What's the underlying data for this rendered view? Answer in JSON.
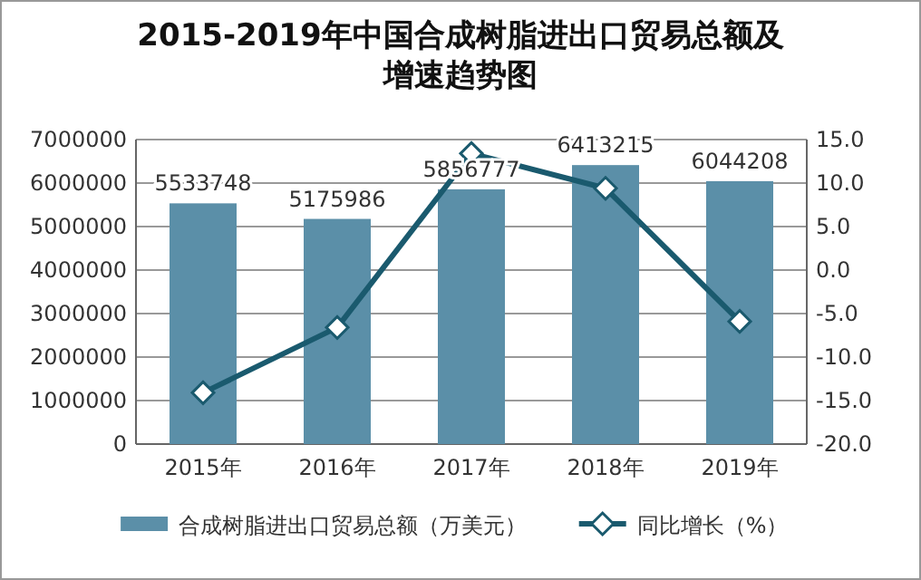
{
  "chart_data": {
    "type": "bar",
    "title": "2015-2019年中国合成树脂进出口贸易总额及增速趋势图",
    "categories": [
      "2015年",
      "2016年",
      "2017年",
      "2018年",
      "2019年"
    ],
    "series": [
      {
        "name": "合成树脂进出口贸易总额（万美元）",
        "color": "#5b8fa8",
        "values": [
          5533748,
          5175986,
          5856777,
          6413215,
          6044208
        ],
        "value_labels": [
          "5533748",
          "5175986",
          "5856777",
          "6413215",
          "6044208"
        ]
      },
      {
        "name": "同比增长（%）",
        "type": "line",
        "axis": "y2",
        "color": "#1a5a6e",
        "marker": "diamond",
        "values": [
          -14.1,
          -6.6,
          13.4,
          9.4,
          -5.9
        ]
      }
    ],
    "ylim": [
      0,
      7000000
    ],
    "yticks": [
      0,
      1000000,
      2000000,
      3000000,
      4000000,
      5000000,
      6000000,
      7000000
    ],
    "y2lim": [
      -20,
      15
    ],
    "y2ticks": [
      {
        "value": -20,
        "label": "-20.0"
      },
      {
        "value": -15,
        "label": "-15.0"
      },
      {
        "value": -10,
        "label": "-10.0"
      },
      {
        "value": -5,
        "label": "-5.0"
      },
      {
        "value": 0,
        "label": "0.0"
      },
      {
        "value": 5,
        "label": "5.0"
      },
      {
        "value": 10,
        "label": "10.0"
      },
      {
        "value": 15,
        "label": "15.0"
      }
    ],
    "grid": "y",
    "legend": "bottom"
  }
}
